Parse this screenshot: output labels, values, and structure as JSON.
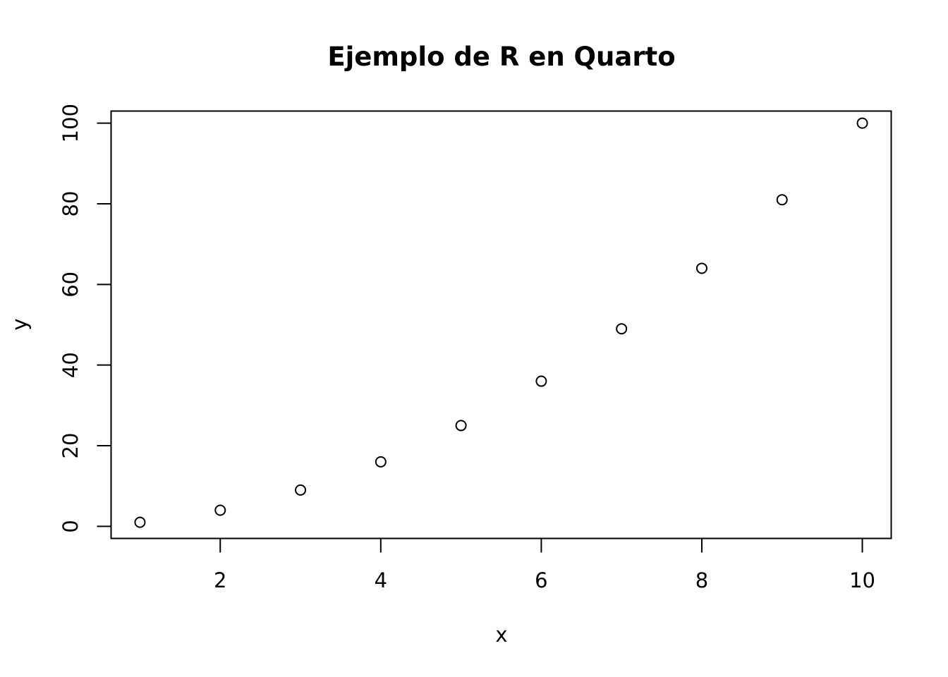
{
  "chart_data": {
    "type": "scatter",
    "title": "Ejemplo de R en Quarto",
    "xlabel": "x",
    "ylabel": "y",
    "xlim": [
      0.64,
      10.36
    ],
    "ylim": [
      -3,
      103
    ],
    "x_ticks": [
      2,
      4,
      6,
      8,
      10
    ],
    "y_ticks": [
      0,
      20,
      40,
      60,
      80,
      100
    ],
    "grid": false,
    "legend": "none",
    "marker": "open-circle",
    "series": [
      {
        "x": [
          1,
          2,
          3,
          4,
          5,
          6,
          7,
          8,
          9,
          10
        ],
        "y": [
          1,
          4,
          9,
          16,
          25,
          36,
          49,
          64,
          81,
          100
        ]
      }
    ],
    "colors": {
      "marker_stroke": "#000000",
      "axis": "#000000",
      "background": "#ffffff"
    }
  }
}
